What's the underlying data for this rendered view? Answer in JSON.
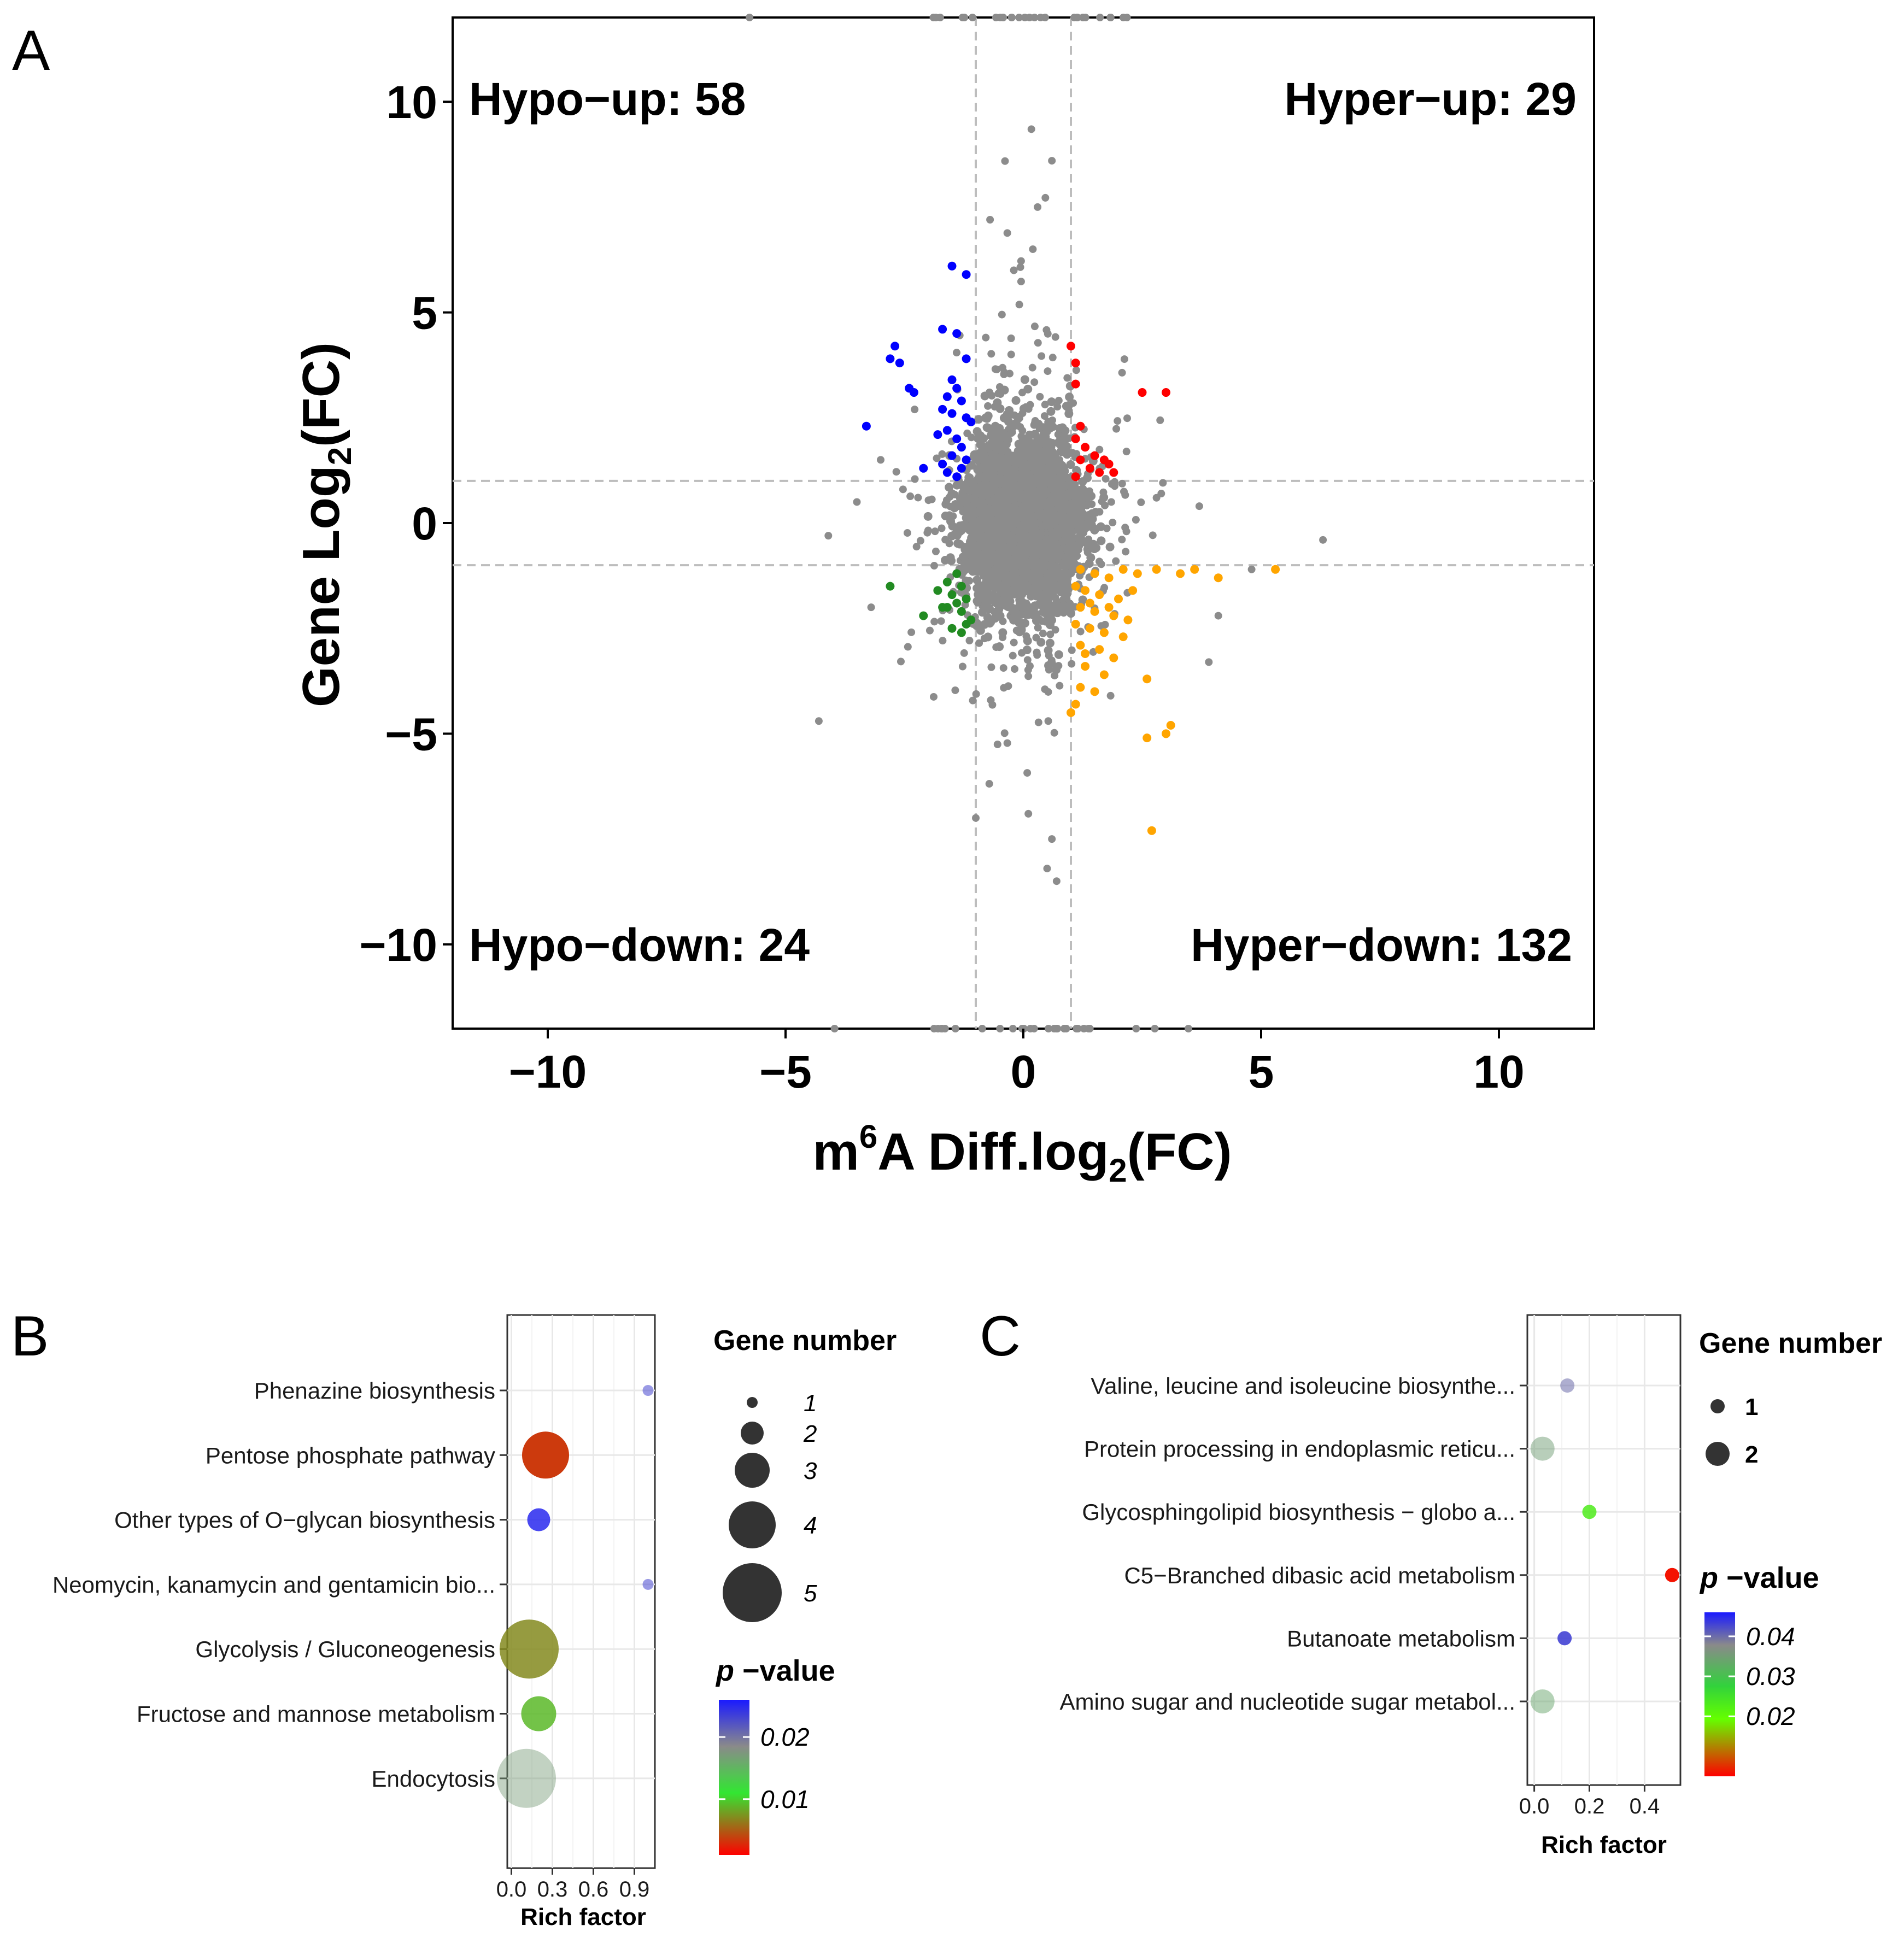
{
  "panel_labels": {
    "a": "A",
    "b": "B",
    "c": "C"
  },
  "panel_a": {
    "xlabel": {
      "part1": "m",
      "sup": "6",
      "part2": "A Diff.log",
      "sub": "2",
      "part3": "(FC)"
    },
    "ylabel": {
      "part1": "Gene Log",
      "sub": "2",
      "part2": "(FC)"
    },
    "quadrants": {
      "top_left": {
        "label": "Hypo−up",
        "count": ": 58"
      },
      "top_right": {
        "label": "Hyper−up",
        "count": ": 29"
      },
      "bottom_left": {
        "label": "Hypo−down",
        "count": ": 24"
      },
      "bottom_right": {
        "label": "Hyper−down",
        "count": ": 132"
      }
    }
  },
  "panel_b": {
    "legend_size_title": "Gene number",
    "legend_color_title": {
      "p": "p",
      "rest": " −value"
    },
    "xlabel": "Rich factor"
  },
  "panel_c": {
    "legend_size_title": "Gene number",
    "legend_color_title": {
      "p": "p",
      "rest": " −value"
    },
    "xlabel": "Rich factor"
  },
  "chart_data": [
    {
      "id": "A",
      "type": "scatter",
      "xlim": [
        -12,
        12
      ],
      "ylim": [
        -12,
        12
      ],
      "x_ticks": [
        -10,
        -5,
        0,
        5,
        10
      ],
      "y_ticks": [
        -10,
        -5,
        0,
        5,
        10
      ],
      "tick_labels_x": [
        "−10",
        "−5",
        "0",
        "5",
        "10"
      ],
      "tick_labels_y": [
        "−10",
        "−5",
        "0",
        "5",
        "10"
      ],
      "threshold_lines": {
        "x": [
          -1,
          1
        ],
        "y": [
          -1,
          1
        ]
      },
      "grid": false,
      "series": [
        {
          "color": "#0000ff",
          "points": [
            [
              -1.5,
              6.1
            ],
            [
              -1.2,
              5.9
            ],
            [
              -2.7,
              4.2
            ],
            [
              -1.7,
              4.6
            ],
            [
              -1.4,
              4.5
            ],
            [
              -2.6,
              3.8
            ],
            [
              -2.8,
              3.9
            ],
            [
              -2.4,
              3.2
            ],
            [
              -2.3,
              3.1
            ],
            [
              -1.2,
              3.9
            ],
            [
              -1.5,
              3.4
            ],
            [
              -1.4,
              3.2
            ],
            [
              -1.6,
              3.0
            ],
            [
              -1.3,
              2.9
            ],
            [
              -1.7,
              2.7
            ],
            [
              -1.5,
              2.6
            ],
            [
              -1.2,
              2.5
            ],
            [
              -3.3,
              2.3
            ],
            [
              -1.6,
              2.2
            ],
            [
              -1.4,
              2.0
            ],
            [
              -1.3,
              1.8
            ],
            [
              -1.5,
              1.6
            ],
            [
              -1.2,
              1.5
            ],
            [
              -2.1,
              1.3
            ],
            [
              -1.6,
              1.2
            ],
            [
              -1.4,
              1.1
            ],
            [
              -1.7,
              1.4
            ],
            [
              -1.3,
              1.3
            ],
            [
              -1.8,
              2.1
            ],
            [
              -1.1,
              2.4
            ]
          ]
        },
        {
          "color": "#ff0000",
          "points": [
            [
              1.0,
              4.2
            ],
            [
              1.1,
              3.8
            ],
            [
              1.1,
              3.3
            ],
            [
              2.5,
              3.1
            ],
            [
              3.0,
              3.1
            ],
            [
              1.2,
              2.3
            ],
            [
              1.1,
              2.0
            ],
            [
              1.3,
              1.8
            ],
            [
              1.5,
              1.6
            ],
            [
              1.2,
              1.5
            ],
            [
              1.8,
              1.4
            ],
            [
              1.4,
              1.3
            ],
            [
              1.6,
              1.2
            ],
            [
              1.1,
              1.1
            ],
            [
              1.9,
              1.2
            ],
            [
              1.7,
              1.5
            ]
          ]
        },
        {
          "color": "#228b22",
          "points": [
            [
              -1.4,
              -1.2
            ],
            [
              -1.6,
              -1.4
            ],
            [
              -1.3,
              -1.5
            ],
            [
              -2.8,
              -1.5
            ],
            [
              -1.5,
              -1.7
            ],
            [
              -1.2,
              -1.8
            ],
            [
              -1.4,
              -1.9
            ],
            [
              -1.7,
              -2.0
            ],
            [
              -1.3,
              -2.1
            ],
            [
              -2.1,
              -2.2
            ],
            [
              -1.6,
              -2.0
            ],
            [
              -1.2,
              -2.4
            ],
            [
              -1.3,
              -2.6
            ],
            [
              -1.5,
              -2.5
            ],
            [
              -1.1,
              -2.3
            ],
            [
              -1.8,
              -1.6
            ]
          ]
        },
        {
          "color": "#ffa500",
          "points": [
            [
              1.2,
              -1.1
            ],
            [
              1.5,
              -1.2
            ],
            [
              1.8,
              -1.3
            ],
            [
              2.1,
              -1.1
            ],
            [
              2.4,
              -1.2
            ],
            [
              2.8,
              -1.1
            ],
            [
              3.3,
              -1.2
            ],
            [
              3.6,
              -1.1
            ],
            [
              4.1,
              -1.3
            ],
            [
              5.3,
              -1.1
            ],
            [
              1.1,
              -1.5
            ],
            [
              1.3,
              -1.6
            ],
            [
              1.6,
              -1.7
            ],
            [
              2.0,
              -1.8
            ],
            [
              2.3,
              -1.6
            ],
            [
              1.2,
              -2.0
            ],
            [
              1.5,
              -2.1
            ],
            [
              1.9,
              -2.2
            ],
            [
              1.1,
              -2.4
            ],
            [
              1.4,
              -2.5
            ],
            [
              1.7,
              -2.6
            ],
            [
              2.1,
              -2.7
            ],
            [
              1.2,
              -2.9
            ],
            [
              1.6,
              -3.0
            ],
            [
              1.9,
              -3.2
            ],
            [
              1.3,
              -3.4
            ],
            [
              1.7,
              -3.6
            ],
            [
              1.2,
              -3.9
            ],
            [
              1.5,
              -4.0
            ],
            [
              1.1,
              -4.3
            ],
            [
              2.6,
              -3.7
            ],
            [
              2.6,
              -5.1
            ],
            [
              3.0,
              -5.0
            ],
            [
              3.1,
              -4.8
            ],
            [
              2.7,
              -7.3
            ],
            [
              1.4,
              -1.9
            ],
            [
              1.8,
              -2.0
            ],
            [
              2.2,
              -2.3
            ],
            [
              1.3,
              -3.1
            ],
            [
              1.0,
              -4.5
            ]
          ]
        }
      ]
    },
    {
      "id": "B",
      "type": "scatter",
      "categories": [
        "Phenazine biosynthesis",
        "Pentose phosphate pathway",
        "Other types of O−glycan biosynthesis",
        "Neomycin, kanamycin and gentamicin bio...",
        "Glycolysis / Gluconeogenesis",
        "Fructose and mannose metabolism",
        "Endocytosis"
      ],
      "x_ticks": [
        0.0,
        0.3,
        0.6,
        0.9
      ],
      "tick_labels_x": [
        "0.0",
        "0.3",
        "0.6",
        "0.9"
      ],
      "xlim": [
        -0.03,
        1.05
      ],
      "rich_factor": [
        1.0,
        0.25,
        0.2,
        1.0,
        0.13,
        0.2,
        0.11
      ],
      "gene_number": [
        1,
        4,
        2,
        1,
        5,
        3,
        5
      ],
      "p_value": [
        0.023,
        0.0035,
        0.025,
        0.023,
        0.007,
        0.009,
        0.017
      ],
      "color_scale": {
        "min": 0.001,
        "max": 0.026,
        "ticks": [
          0.01,
          0.02
        ],
        "tick_labels": [
          "0.01",
          "0.02"
        ]
      },
      "size_legend": {
        "values": [
          1,
          2,
          3,
          4,
          5
        ],
        "labels": [
          "1",
          "2",
          "3",
          "4",
          "5"
        ]
      },
      "grid": true
    },
    {
      "id": "C",
      "type": "scatter",
      "categories": [
        "Valine, leucine and isoleucine biosynthe...",
        "Protein processing in endoplasmic reticu...",
        "Glycosphingolipid biosynthesis − globo a...",
        "C5−Branched dibasic acid metabolism",
        "Butanoate metabolism",
        "Amino sugar and nucleotide sugar metabol..."
      ],
      "x_ticks": [
        0.0,
        0.2,
        0.4
      ],
      "tick_labels_x": [
        "0.0",
        "0.2",
        "0.4"
      ],
      "xlim": [
        -0.025,
        0.53
      ],
      "rich_factor": [
        0.12,
        0.03,
        0.2,
        0.5,
        0.11,
        0.03
      ],
      "gene_number": [
        1,
        2,
        1,
        1,
        1,
        2
      ],
      "p_value": [
        0.04,
        0.035,
        0.023,
        0.006,
        0.043,
        0.034
      ],
      "color_scale": {
        "min": 0.005,
        "max": 0.046,
        "ticks": [
          0.02,
          0.03,
          0.04
        ],
        "tick_labels": [
          "0.02",
          "0.03",
          "0.04"
        ]
      },
      "size_legend": {
        "values": [
          1,
          2
        ],
        "labels": [
          "1",
          "2"
        ]
      },
      "grid": true
    }
  ]
}
